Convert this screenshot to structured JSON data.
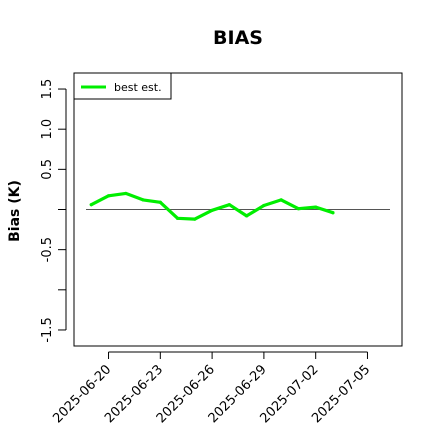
{
  "chart_data": {
    "type": "line",
    "title": "BIAS",
    "xlabel": "",
    "ylabel": "Bias (K)",
    "ylim": [
      -1.6,
      1.6
    ],
    "yticks": [
      "-1.5",
      "-0.5",
      "0.5",
      "1.0",
      "1.5"
    ],
    "ytick_values": [
      -1.5,
      -0.5,
      0.5,
      1.0,
      1.5
    ],
    "yminor_ticks": [
      -1.0,
      0.0
    ],
    "xlim": [
      "2025-06-18",
      "2025-07-07"
    ],
    "xticks": [
      "2025-06-20",
      "2025-06-23",
      "2025-06-26",
      "2025-06-29",
      "2025-07-02",
      "2025-07-05"
    ],
    "reference_line": 0,
    "grid": false,
    "legend_position": "top-left",
    "series": [
      {
        "name": "best est.",
        "color": "#00ee00",
        "x": [
          "2025-06-19",
          "2025-06-20",
          "2025-06-21",
          "2025-06-22",
          "2025-06-23",
          "2025-06-24",
          "2025-06-25",
          "2025-06-26",
          "2025-06-27",
          "2025-06-28",
          "2025-06-29",
          "2025-06-30",
          "2025-07-01",
          "2025-07-02",
          "2025-07-03"
        ],
        "values": [
          0.06,
          0.17,
          0.2,
          0.12,
          0.09,
          -0.11,
          -0.12,
          -0.01,
          0.06,
          -0.08,
          0.05,
          0.12,
          0.01,
          0.03,
          -0.04
        ]
      }
    ]
  }
}
